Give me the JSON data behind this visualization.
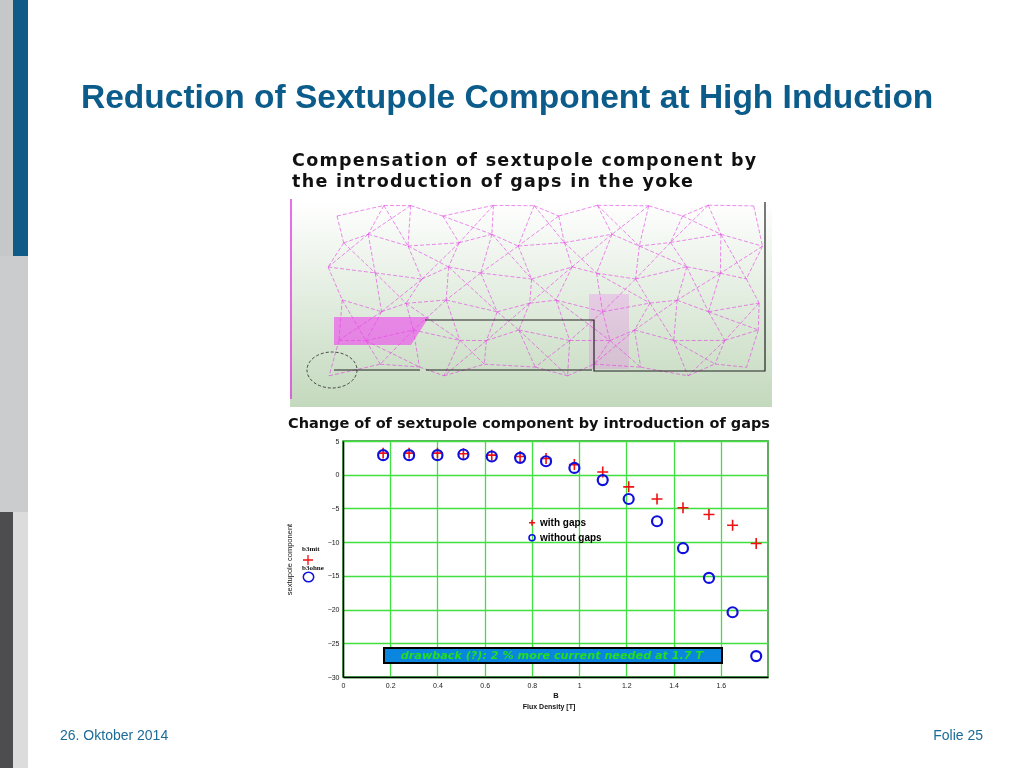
{
  "chart_data": {
    "type": "scatter",
    "title": "Reduction of Sextupole Component at High Induction",
    "subtitle": "Change of of sextupole component by introduction of gaps",
    "xlabel": "B",
    "ylabel": "sextupole component",
    "annotations": [
      "Compensation of sextupole component by the introduction of gaps in the yoke",
      "b3mit",
      "b3ohne",
      "drawback (?): 2 % more current needed at 1.7 T",
      "Flux Density [T]",
      "26. Oktober 2014",
      "Folie 25"
    ],
    "x": [
      0.17,
      0.28,
      0.4,
      0.51,
      0.63,
      0.75,
      0.86,
      0.98,
      1.1,
      1.21,
      1.33,
      1.44,
      1.55,
      1.65,
      1.75
    ],
    "series": [
      {
        "name": "with gaps",
        "color": "#ee1111",
        "marker": "cross",
        "values": [
          3.2,
          3.2,
          3.2,
          3.1,
          2.9,
          2.7,
          2.4,
          1.5,
          0.4,
          -1.8,
          -3.6,
          -4.9,
          -5.9,
          -7.5,
          -10.2
        ]
      },
      {
        "name": "without gaps",
        "color": "#1010dd",
        "marker": "circle",
        "values": [
          2.9,
          2.9,
          2.9,
          3.0,
          2.7,
          2.5,
          2.0,
          1.0,
          -0.8,
          -3.6,
          -6.9,
          -10.9,
          -15.3,
          -20.4,
          -26.9
        ]
      }
    ],
    "xlim": [
      0,
      1.8
    ],
    "xticks": [
      0,
      0.2,
      0.4,
      0.6,
      0.8,
      1,
      1.2,
      1.4,
      1.6
    ],
    "ylim": [
      -30,
      5
    ],
    "yticks": [
      -30,
      -25,
      -20,
      -15,
      -10,
      -5,
      0,
      5
    ],
    "grid": true,
    "legend": "center"
  }
}
